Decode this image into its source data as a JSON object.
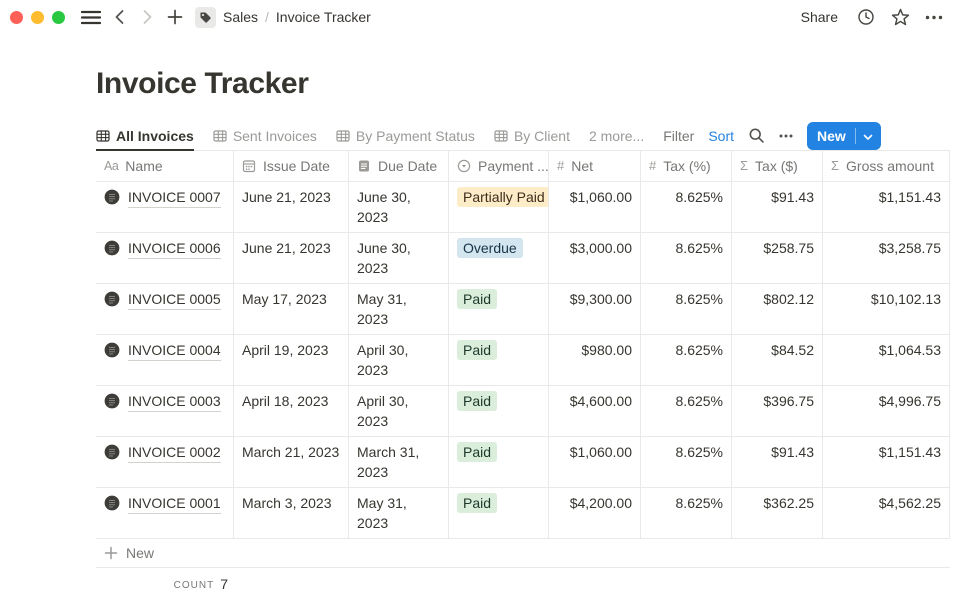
{
  "topbar": {
    "traffic_lights": {
      "close": "#FE5F57",
      "minimize": "#FEBC2E",
      "zoom": "#28C840"
    },
    "breadcrumb": {
      "parent": "Sales",
      "separator": "/",
      "current": "Invoice Tracker"
    },
    "share_label": "Share"
  },
  "page": {
    "title": "Invoice Tracker"
  },
  "tabs": [
    {
      "label": "All Invoices",
      "icon": "table",
      "active": true
    },
    {
      "label": "Sent Invoices",
      "icon": "table",
      "active": false
    },
    {
      "label": "By Payment Status",
      "icon": "table",
      "active": false
    },
    {
      "label": "By Client",
      "icon": "table",
      "active": false
    },
    {
      "label": "2 more...",
      "icon": null,
      "active": false
    }
  ],
  "toolbar": {
    "filter_label": "Filter",
    "sort_label": "Sort",
    "new_label": "New",
    "accent_color": "#2383E2"
  },
  "icons": {
    "search": "magnifier",
    "more": "ellipsis",
    "history": "clock",
    "favorite": "star",
    "back": "chevron-left",
    "forward": "chevron-right",
    "new-page": "plus",
    "menu": "hamburger",
    "workspace": "tag"
  },
  "table": {
    "columns": [
      {
        "label": "Name",
        "icon": "text"
      },
      {
        "label": "Issue Date",
        "icon": "calendar"
      },
      {
        "label": "Due Date",
        "icon": "document"
      },
      {
        "label": "Payment ...",
        "icon": "select"
      },
      {
        "label": "Net",
        "icon": "number",
        "align": "right"
      },
      {
        "label": "Tax (%)",
        "icon": "number",
        "align": "right"
      },
      {
        "label": "Tax ($)",
        "icon": "formula",
        "align": "right"
      },
      {
        "label": "Gross amount",
        "icon": "formula",
        "align": "right"
      }
    ],
    "rows": [
      {
        "name": "INVOICE 0007",
        "issue_date": "June 21, 2023",
        "due_date": "June 30, 2023",
        "payment_status": "Partially Paid",
        "status_color": "yellow",
        "net": "$1,060.00",
        "tax_pct": "8.625%",
        "tax_amt": "$91.43",
        "gross": "$1,151.43",
        "tall": false
      },
      {
        "name": "INVOICE 0006",
        "issue_date": "June 21, 2023",
        "due_date": "June 30, 2023",
        "payment_status": "Overdue",
        "status_color": "blue",
        "net": "$3,000.00",
        "tax_pct": "8.625%",
        "tax_amt": "$258.75",
        "gross": "$3,258.75",
        "tall": true
      },
      {
        "name": "INVOICE 0005",
        "issue_date": "May 17, 2023",
        "due_date": "May 31, 2023",
        "payment_status": "Paid",
        "status_color": "green",
        "net": "$9,300.00",
        "tax_pct": "8.625%",
        "tax_amt": "$802.12",
        "gross": "$10,102.13",
        "tall": false
      },
      {
        "name": "INVOICE 0004",
        "issue_date": "April 19, 2023",
        "due_date": "April 30, 2023",
        "payment_status": "Paid",
        "status_color": "green",
        "net": "$980.00",
        "tax_pct": "8.625%",
        "tax_amt": "$84.52",
        "gross": "$1,064.53",
        "tall": true
      },
      {
        "name": "INVOICE 0003",
        "issue_date": "April 18, 2023",
        "due_date": "April 30, 2023",
        "payment_status": "Paid",
        "status_color": "green",
        "net": "$4,600.00",
        "tax_pct": "8.625%",
        "tax_amt": "$396.75",
        "gross": "$4,996.75",
        "tall": false
      },
      {
        "name": "INVOICE 0002",
        "issue_date": "March 21, 2023",
        "due_date": "March 31, 2023",
        "payment_status": "Paid",
        "status_color": "green",
        "net": "$1,060.00",
        "tax_pct": "8.625%",
        "tax_amt": "$91.43",
        "gross": "$1,151.43",
        "tall": true
      },
      {
        "name": "INVOICE 0001",
        "issue_date": "March 3, 2023",
        "due_date": "May 31, 2023",
        "payment_status": "Paid",
        "status_color": "green",
        "net": "$4,200.00",
        "tax_pct": "8.625%",
        "tax_amt": "$362.25",
        "gross": "$4,562.25",
        "tall": true
      }
    ],
    "new_row_label": "New",
    "count_label": "COUNT",
    "count_value": "7"
  },
  "status_colors": {
    "yellow": {
      "bg": "#FDECC8",
      "fg": "#402C1B"
    },
    "blue": {
      "bg": "#D3E5EF",
      "fg": "#183347"
    },
    "green": {
      "bg": "#DBEDDB",
      "fg": "#1C3829"
    }
  }
}
